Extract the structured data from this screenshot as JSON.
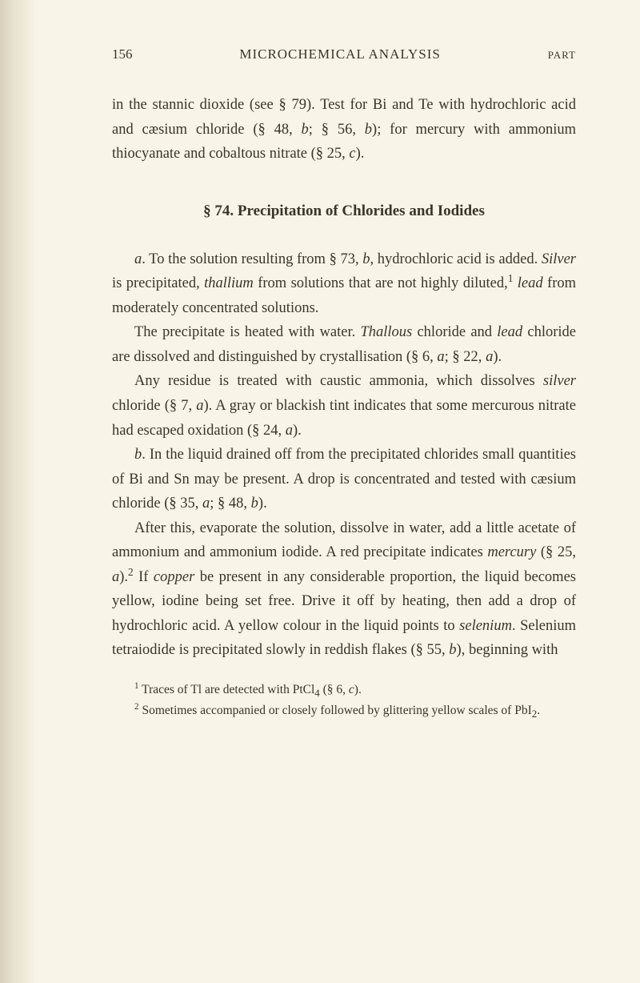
{
  "header": {
    "page_number": "156",
    "running_head": "MICROCHEMICAL ANALYSIS",
    "part_label": "PART"
  },
  "content": {
    "p1": "in the stannic dioxide (see § 79). Test for Bi and Te with hydrochloric acid and cæsium chloride (§ 48, ",
    "p1_b": "b",
    "p1_after_b": "; § 56, ",
    "p1_b2": "b",
    "p1_after_b2": "); for mercury with ammonium thiocyanate and cobaltous nitrate (§ 25, ",
    "p1_c": "c",
    "p1_end": ").",
    "heading": "§ 74. Precipitation of Chlorides and Iodides",
    "p2_a": "a",
    "p2_start": ". To the solution resulting from § 73, ",
    "p2_b": "b",
    "p2_mid": ", hydrochloric acid is added. ",
    "p2_silver": "Silver",
    "p2_after_silver": " is precipitated, ",
    "p2_thallium": "thallium",
    "p2_after_thallium": " from solutions that are not highly diluted,",
    "p2_sup1": "1",
    "p2_space": " ",
    "p2_lead": "lead",
    "p2_end": " from moderately concentrated solutions.",
    "p3_start": "The precipitate is heated with water. ",
    "p3_thallous": "Thallous",
    "p3_mid": " chloride and ",
    "p3_lead": "lead",
    "p3_after_lead": " chloride are dissolved and distinguished by crystallisation (§ 6, ",
    "p3_a": "a",
    "p3_semi": "; § 22, ",
    "p3_a2": "a",
    "p3_end": ").",
    "p4_start": "Any residue is treated with caustic ammonia, which dissolves ",
    "p4_silver": "silver",
    "p4_after_silver": " chloride (§ 7, ",
    "p4_a": "a",
    "p4_mid": "). A gray or blackish tint indicates that some mercurous nitrate had escaped oxidation (§ 24, ",
    "p4_a2": "a",
    "p4_end": ").",
    "p5_b": "b",
    "p5_start": ". In the liquid drained off from the precipitated chlorides small quantities of Bi and Sn may be present. A drop is concentrated and tested with cæsium chloride (§ 35, ",
    "p5_a": "a",
    "p5_semi": "; § 48, ",
    "p5_b2": "b",
    "p5_end": ").",
    "p6_start": "After this, evaporate the solution, dissolve in water, add a little acetate of ammonium and ammonium iodide. A red precipitate indicates ",
    "p6_mercury": "mercury",
    "p6_after_mercury": " (§ 25, ",
    "p6_a": "a",
    "p6_paren": ").",
    "p6_sup2": "2",
    "p6_if": " If ",
    "p6_copper": "copper",
    "p6_after_copper": " be present in any considerable proportion, the liquid becomes yellow, iodine being set free. Drive it off by heating, then add a drop of hydrochloric acid. A yellow colour in the liquid points to ",
    "p6_selenium": "selenium",
    "p6_after_selenium": ". Selenium tetraiodide is precipitated slowly in reddish flakes (§ 55, ",
    "p6_b": "b",
    "p6_end": "), beginning with"
  },
  "footnotes": {
    "fn1_sup": "1",
    "fn1_text": " Traces of Tl are detected with PtCl",
    "fn1_sub4": "4",
    "fn1_rest": " (§ 6, ",
    "fn1_c": "c",
    "fn1_end": ").",
    "fn2_sup": "2",
    "fn2_text": " Sometimes accompanied or closely followed by glittering yellow scales of PbI",
    "fn2_sub2": "2",
    "fn2_end": "."
  }
}
